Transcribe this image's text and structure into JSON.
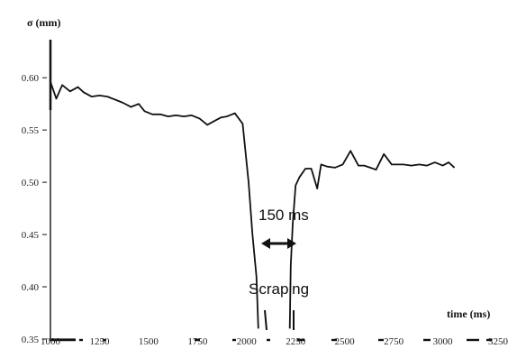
{
  "chart_data": {
    "type": "line",
    "ylabel": "σ (mm)",
    "xlabel": "time (ms)",
    "xlim": [
      1000,
      3250
    ],
    "ylim": [
      0.35,
      0.62
    ],
    "x_ticks": [
      1000,
      1250,
      1500,
      1750,
      2000,
      2250,
      2500,
      2750,
      3000,
      3250
    ],
    "x_tick_labels": [
      "1000",
      "1250",
      "1500",
      "1750",
      "2000",
      "2250",
      "2500",
      "2750",
      "3000",
      "3250"
    ],
    "y_ticks": [
      0.35,
      0.4,
      0.45,
      0.5,
      0.55,
      0.6
    ],
    "y_tick_labels": [
      "0.35",
      "0.40",
      "0.45",
      "0.50",
      "0.55",
      "0.60"
    ],
    "grid": false,
    "series": [
      {
        "x": [
          1000,
          1030,
          1060,
          1100,
          1140,
          1170,
          1210,
          1250,
          1290,
          1330,
          1370,
          1410,
          1450,
          1480,
          1520,
          1560,
          1600,
          1640,
          1680,
          1720,
          1760,
          1800,
          1840,
          1870,
          1900,
          1940,
          1980,
          2010,
          2030,
          2050,
          2060
        ],
        "y": [
          0.596,
          0.58,
          0.593,
          0.587,
          0.591,
          0.586,
          0.582,
          0.583,
          0.582,
          0.579,
          0.576,
          0.572,
          0.575,
          0.568,
          0.565,
          0.565,
          0.563,
          0.564,
          0.563,
          0.564,
          0.561,
          0.555,
          0.559,
          0.562,
          0.563,
          0.566,
          0.556,
          0.5,
          0.45,
          0.41,
          0.36
        ]
      },
      {
        "x": [
          2220,
          2225,
          2235,
          2250,
          2270,
          2300,
          2330,
          2360,
          2380,
          2410,
          2450,
          2490,
          2530,
          2570,
          2600,
          2630,
          2660,
          2700,
          2740,
          2770,
          2800,
          2840,
          2880,
          2920,
          2960,
          3000,
          3030,
          3060
        ],
        "y": [
          0.36,
          0.42,
          0.46,
          0.497,
          0.505,
          0.513,
          0.513,
          0.494,
          0.517,
          0.515,
          0.514,
          0.517,
          0.53,
          0.516,
          0.516,
          0.514,
          0.512,
          0.527,
          0.517,
          0.517,
          0.517,
          0.516,
          0.517,
          0.516,
          0.519,
          0.516,
          0.519,
          0.514
        ]
      }
    ],
    "annotations": [
      {
        "text": "150 ms"
      },
      {
        "text": "Scraping"
      }
    ]
  }
}
